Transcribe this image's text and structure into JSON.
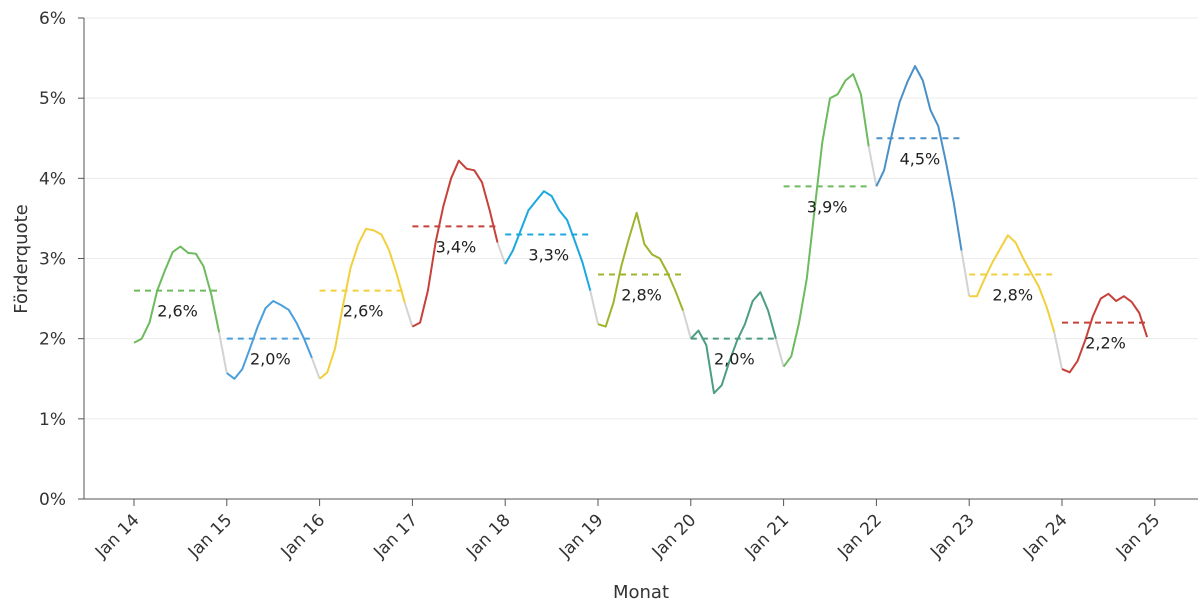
{
  "chart_data": {
    "type": "line",
    "xlabel": "Monat",
    "ylabel": "Förderquote",
    "x_ticks": [
      "Jan 14",
      "Jan 15",
      "Jan 16",
      "Jan 17",
      "Jan 18",
      "Jan 19",
      "Jan 20",
      "Jan 21",
      "Jan 22",
      "Jan 23",
      "Jan 24",
      "Jan 25"
    ],
    "y_ticks": [
      "0%",
      "1%",
      "2%",
      "3%",
      "4%",
      "5%",
      "6%"
    ],
    "ylim": [
      0,
      6
    ],
    "grid": "horizontal",
    "connector_color": "#d3d3d3",
    "series": [
      {
        "year": 2014,
        "color": "#6dbb5e",
        "average": 2.6,
        "average_label": "2,6%",
        "values": [
          1.95,
          2.0,
          2.2,
          2.6,
          2.85,
          3.08,
          3.15,
          3.07,
          3.06,
          2.9,
          2.55,
          2.08
        ]
      },
      {
        "year": 2015,
        "color": "#4a9fdc",
        "average": 2.0,
        "average_label": "2,0%",
        "values": [
          1.57,
          1.5,
          1.62,
          1.88,
          2.15,
          2.38,
          2.47,
          2.42,
          2.36,
          2.2,
          2.0,
          1.76
        ]
      },
      {
        "year": 2016,
        "color": "#f2cf3c",
        "average": 2.6,
        "average_label": "2,6%",
        "values": [
          1.5,
          1.58,
          1.88,
          2.4,
          2.88,
          3.18,
          3.37,
          3.35,
          3.3,
          3.1,
          2.8,
          2.45
        ]
      },
      {
        "year": 2017,
        "color": "#c8403a",
        "average": 3.4,
        "average_label": "3,4%",
        "values": [
          2.15,
          2.2,
          2.6,
          3.2,
          3.65,
          4.0,
          4.22,
          4.12,
          4.1,
          3.95,
          3.6,
          3.2
        ]
      },
      {
        "year": 2018,
        "color": "#1ba8df",
        "average": 3.3,
        "average_label": "3,3%",
        "values": [
          2.93,
          3.1,
          3.35,
          3.6,
          3.72,
          3.84,
          3.78,
          3.6,
          3.48,
          3.22,
          2.95,
          2.6
        ]
      },
      {
        "year": 2019,
        "color": "#9cb52c",
        "average": 2.8,
        "average_label": "2,8%",
        "values": [
          2.18,
          2.15,
          2.45,
          2.9,
          3.25,
          3.57,
          3.18,
          3.05,
          3.0,
          2.82,
          2.6,
          2.35
        ]
      },
      {
        "year": 2020,
        "color": "#4c9d83",
        "average": 2.0,
        "average_label": "2,0%",
        "values": [
          2.0,
          2.1,
          1.92,
          1.32,
          1.42,
          1.72,
          1.98,
          2.18,
          2.47,
          2.58,
          2.35,
          2.0
        ]
      },
      {
        "year": 2021,
        "color": "#6dbb5e",
        "average": 3.9,
        "average_label": "3,9%",
        "values": [
          1.65,
          1.78,
          2.2,
          2.75,
          3.6,
          4.45,
          5.0,
          5.05,
          5.22,
          5.3,
          5.05,
          4.4
        ]
      },
      {
        "year": 2022,
        "color": "#4a90c8",
        "average": 4.5,
        "average_label": "4,5%",
        "values": [
          3.9,
          4.1,
          4.55,
          4.95,
          5.2,
          5.4,
          5.22,
          4.85,
          4.65,
          4.2,
          3.7,
          3.1
        ]
      },
      {
        "year": 2023,
        "color": "#f2cf3c",
        "average": 2.8,
        "average_label": "2,8%",
        "values": [
          2.53,
          2.53,
          2.75,
          2.95,
          3.12,
          3.29,
          3.2,
          3.0,
          2.82,
          2.65,
          2.4,
          2.08
        ]
      },
      {
        "year": 2024,
        "color": "#c8403a",
        "average": 2.2,
        "average_label": "2,2%",
        "values": [
          1.62,
          1.58,
          1.72,
          1.98,
          2.28,
          2.5,
          2.56,
          2.47,
          2.53,
          2.46,
          2.32,
          2.02
        ]
      }
    ]
  }
}
